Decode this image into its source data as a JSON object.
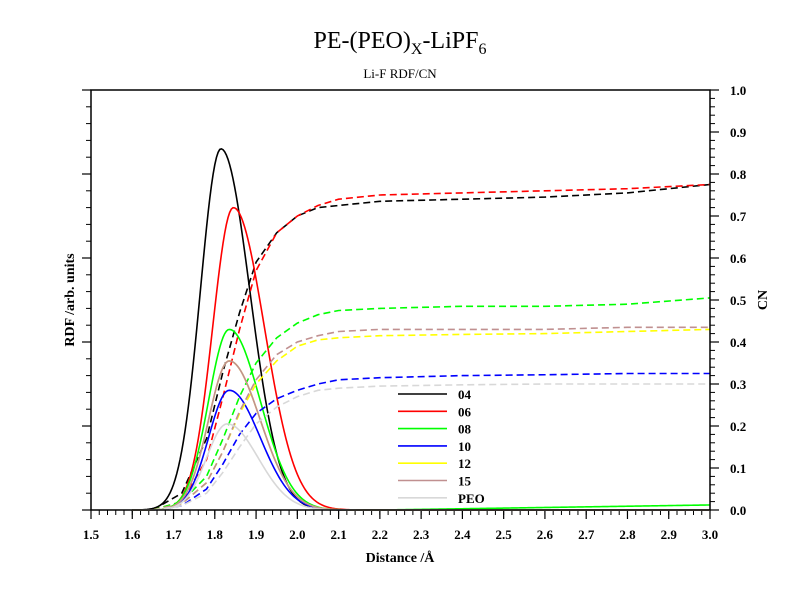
{
  "chart_data": {
    "type": "line",
    "title": {
      "main": "PE-(PEO)",
      "sub1": "X",
      "mid": "-LiPF",
      "sub2": "6"
    },
    "subtitle": "Li-F RDF/CN",
    "xlabel": "Distance /Å",
    "ylabel_left": "RDF /arb. units",
    "ylabel_right": "CN",
    "xlim": [
      1.5,
      3.0
    ],
    "y_right_lim": [
      0.0,
      1.0
    ],
    "y_left_lim": [
      0,
      1
    ],
    "x_ticks": [
      "1.5",
      "1.6",
      "1.7",
      "1.8",
      "1.9",
      "2.0",
      "2.1",
      "2.2",
      "2.3",
      "2.4",
      "2.5",
      "2.6",
      "2.7",
      "2.8",
      "2.9",
      "3.0"
    ],
    "y_right_ticks": [
      "0.0",
      "0.1",
      "0.2",
      "0.3",
      "0.4",
      "0.5",
      "0.6",
      "0.7",
      "0.8",
      "0.9",
      "1.0"
    ],
    "legend_position": "center-bottom",
    "grid": false,
    "series": [
      {
        "name": "04",
        "color": "#000000",
        "rdf_peak": 0.86,
        "peak_x": 1.815,
        "width_left": 0.05,
        "width_right": 0.07,
        "tail": 0.0,
        "cn": [
          [
            1.65,
            0.0
          ],
          [
            1.72,
            0.04
          ],
          [
            1.78,
            0.17
          ],
          [
            1.82,
            0.33
          ],
          [
            1.86,
            0.47
          ],
          [
            1.9,
            0.59
          ],
          [
            1.95,
            0.66
          ],
          [
            2.0,
            0.7
          ],
          [
            2.05,
            0.72
          ],
          [
            2.1,
            0.725
          ],
          [
            2.2,
            0.735
          ],
          [
            2.4,
            0.74
          ],
          [
            2.6,
            0.745
          ],
          [
            2.8,
            0.755
          ],
          [
            3.0,
            0.775
          ]
        ]
      },
      {
        "name": "06",
        "color": "#ff0000",
        "rdf_peak": 0.72,
        "peak_x": 1.845,
        "width_left": 0.05,
        "width_right": 0.075,
        "tail": 0.0,
        "cn": [
          [
            1.65,
            0.0
          ],
          [
            1.72,
            0.02
          ],
          [
            1.78,
            0.12
          ],
          [
            1.82,
            0.27
          ],
          [
            1.86,
            0.43
          ],
          [
            1.9,
            0.57
          ],
          [
            1.95,
            0.66
          ],
          [
            2.0,
            0.7
          ],
          [
            2.05,
            0.725
          ],
          [
            2.1,
            0.74
          ],
          [
            2.2,
            0.75
          ],
          [
            2.4,
            0.755
          ],
          [
            2.6,
            0.76
          ],
          [
            2.8,
            0.765
          ],
          [
            3.0,
            0.775
          ]
        ]
      },
      {
        "name": "08",
        "color": "#00ff00",
        "rdf_peak": 0.43,
        "peak_x": 1.835,
        "width_left": 0.05,
        "width_right": 0.075,
        "tail": 0.012,
        "cn": [
          [
            1.65,
            0.0
          ],
          [
            1.72,
            0.02
          ],
          [
            1.78,
            0.08
          ],
          [
            1.82,
            0.17
          ],
          [
            1.86,
            0.27
          ],
          [
            1.9,
            0.35
          ],
          [
            1.95,
            0.41
          ],
          [
            2.0,
            0.445
          ],
          [
            2.05,
            0.465
          ],
          [
            2.1,
            0.475
          ],
          [
            2.2,
            0.48
          ],
          [
            2.4,
            0.485
          ],
          [
            2.6,
            0.485
          ],
          [
            2.8,
            0.49
          ],
          [
            3.0,
            0.505
          ]
        ]
      },
      {
        "name": "10",
        "color": "#0000ff",
        "rdf_peak": 0.285,
        "peak_x": 1.835,
        "width_left": 0.05,
        "width_right": 0.075,
        "tail": 0.0,
        "cn": [
          [
            1.65,
            0.0
          ],
          [
            1.72,
            0.01
          ],
          [
            1.78,
            0.05
          ],
          [
            1.82,
            0.11
          ],
          [
            1.86,
            0.18
          ],
          [
            1.9,
            0.23
          ],
          [
            1.95,
            0.265
          ],
          [
            2.0,
            0.285
          ],
          [
            2.05,
            0.3
          ],
          [
            2.1,
            0.31
          ],
          [
            2.2,
            0.315
          ],
          [
            2.4,
            0.32
          ],
          [
            2.6,
            0.322
          ],
          [
            2.8,
            0.325
          ],
          [
            3.0,
            0.325
          ]
        ]
      },
      {
        "name": "12",
        "color": "#ffff00",
        "rdf_peak": 0.355,
        "peak_x": 1.835,
        "width_left": 0.05,
        "width_right": 0.075,
        "tail": 0.0,
        "cn": [
          [
            1.65,
            0.0
          ],
          [
            1.72,
            0.015
          ],
          [
            1.78,
            0.065
          ],
          [
            1.82,
            0.14
          ],
          [
            1.86,
            0.23
          ],
          [
            1.9,
            0.3
          ],
          [
            1.95,
            0.355
          ],
          [
            2.0,
            0.39
          ],
          [
            2.05,
            0.405
          ],
          [
            2.1,
            0.41
          ],
          [
            2.2,
            0.415
          ],
          [
            2.4,
            0.418
          ],
          [
            2.6,
            0.42
          ],
          [
            2.8,
            0.425
          ],
          [
            3.0,
            0.43
          ]
        ]
      },
      {
        "name": "15",
        "color": "#c09090",
        "rdf_peak": 0.355,
        "peak_x": 1.835,
        "width_left": 0.05,
        "width_right": 0.075,
        "tail": 0.0,
        "cn": [
          [
            1.65,
            0.0
          ],
          [
            1.72,
            0.015
          ],
          [
            1.78,
            0.065
          ],
          [
            1.82,
            0.14
          ],
          [
            1.86,
            0.235
          ],
          [
            1.9,
            0.31
          ],
          [
            1.95,
            0.37
          ],
          [
            2.0,
            0.4
          ],
          [
            2.05,
            0.415
          ],
          [
            2.1,
            0.425
          ],
          [
            2.2,
            0.43
          ],
          [
            2.4,
            0.43
          ],
          [
            2.6,
            0.43
          ],
          [
            2.8,
            0.435
          ],
          [
            3.0,
            0.435
          ]
        ]
      },
      {
        "name": "PEO",
        "color": "#d8d8d8",
        "rdf_peak": 0.205,
        "peak_x": 1.83,
        "width_left": 0.05,
        "width_right": 0.075,
        "tail": 0.0,
        "cn": [
          [
            1.65,
            0.0
          ],
          [
            1.72,
            0.01
          ],
          [
            1.78,
            0.04
          ],
          [
            1.82,
            0.09
          ],
          [
            1.86,
            0.15
          ],
          [
            1.9,
            0.205
          ],
          [
            1.95,
            0.245
          ],
          [
            2.0,
            0.27
          ],
          [
            2.05,
            0.285
          ],
          [
            2.1,
            0.29
          ],
          [
            2.2,
            0.295
          ],
          [
            2.4,
            0.298
          ],
          [
            2.6,
            0.3
          ],
          [
            2.8,
            0.3
          ],
          [
            3.0,
            0.3
          ]
        ]
      }
    ]
  }
}
